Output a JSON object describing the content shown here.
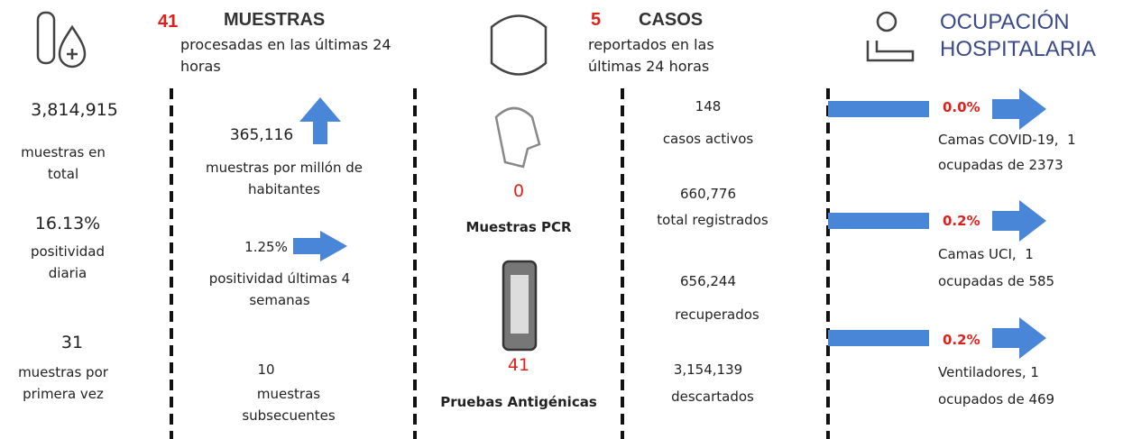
{
  "muestras": {
    "count": "41",
    "title": "MUESTRAS",
    "subtitle": "procesadas en las últimas 24 horas",
    "total": {
      "value": "3,814,915",
      "label": "muestras en total"
    },
    "positividad_diaria": {
      "value": "16.13%",
      "label": "positividad diaria"
    },
    "primera_vez": {
      "value": "31",
      "label": "muestras por primera vez"
    },
    "por_millon": {
      "value": "365,116",
      "label": "muestras por millón de habitantes"
    },
    "positividad_4_semanas": {
      "value": "1.25%",
      "label": "positividad últimas 4 semanas"
    },
    "subsecuentes": {
      "value": "10",
      "label": "muestras subsecuentes"
    }
  },
  "pruebas": {
    "pcr": {
      "value": "0",
      "label": "Muestras PCR"
    },
    "antigenicas": {
      "value": "41",
      "label": "Pruebas Antigénicas"
    }
  },
  "casos": {
    "count": "5",
    "title": "CASOS",
    "subtitle": "reportados en las últimas 24 horas",
    "activos": {
      "value": "148",
      "label": "casos activos"
    },
    "registrados": {
      "value": "660,776",
      "label": "total registrados"
    },
    "recuperados": {
      "value": "656,244",
      "label": "recuperados"
    },
    "descartados": {
      "value": "3,154,139",
      "label": "descartados"
    }
  },
  "ocupacion": {
    "title": "OCUPACIÓN HOSPITALARIA",
    "items": [
      {
        "value": "0.0%",
        "label": "Camas COVID-19,  1 ocupadas de 2373"
      },
      {
        "value": "0.2%",
        "label": "Camas UCI,  1 ocupadas de 585"
      },
      {
        "value": "0.2%",
        "label": "Ventiladores, 1 ocupados de 469"
      }
    ]
  }
}
